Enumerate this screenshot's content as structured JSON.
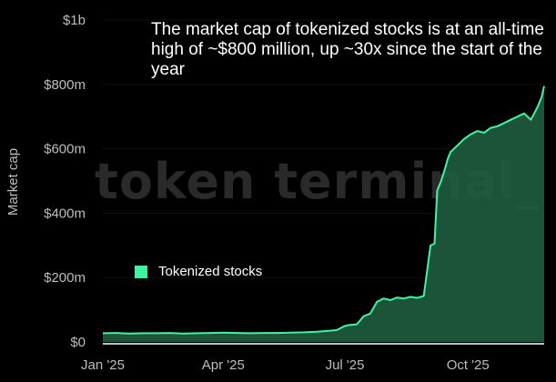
{
  "title": "The market cap of tokenized stocks is at an all-time high of ~$800 million, up ~30x since the start of the year",
  "watermark": "token terminal_",
  "colors": {
    "background": "#000000",
    "series_line": "#3df5a0",
    "series_fill": "#1f5d3f",
    "axis_text": "#bdbdbd",
    "baseline": "#ffffff"
  },
  "chart_data": {
    "type": "area",
    "title": "The market cap of tokenized stocks is at an all-time high of ~$800 million, up ~30x since the start of the year",
    "xlabel": "",
    "ylabel": "Market cap",
    "ylim": [
      0,
      1000
    ],
    "y_unit": "million USD",
    "y_ticks": [
      0,
      200,
      400,
      600,
      800,
      1000
    ],
    "y_tick_labels": [
      "$0",
      "$200m",
      "$400m",
      "$600m",
      "$800m",
      "$1b"
    ],
    "x_ticks": [
      0,
      90,
      181,
      273
    ],
    "x_tick_labels": [
      "Jan '25",
      "Apr '25",
      "Jul '25",
      "Oct '25"
    ],
    "xlim": [
      0,
      330
    ],
    "legend": [
      "Tokenized stocks"
    ],
    "legend_position": "center-left",
    "series": [
      {
        "name": "Tokenized stocks",
        "x": [
          0,
          10,
          20,
          30,
          40,
          50,
          60,
          70,
          80,
          90,
          100,
          110,
          120,
          130,
          140,
          150,
          160,
          170,
          175,
          180,
          183,
          190,
          195,
          200,
          205,
          210,
          215,
          220,
          225,
          230,
          235,
          240,
          245,
          248,
          250,
          253,
          256,
          258,
          260,
          265,
          270,
          275,
          280,
          285,
          290,
          295,
          300,
          305,
          310,
          315,
          320,
          322,
          325,
          328,
          330
        ],
        "values": [
          27,
          28,
          26,
          27,
          27,
          28,
          26,
          27,
          28,
          29,
          28,
          27,
          28,
          28,
          29,
          30,
          32,
          35,
          37,
          48,
          52,
          55,
          80,
          88,
          125,
          135,
          130,
          138,
          135,
          140,
          137,
          143,
          300,
          305,
          470,
          500,
          540,
          570,
          590,
          610,
          630,
          645,
          655,
          650,
          665,
          670,
          680,
          690,
          700,
          710,
          690,
          705,
          730,
          760,
          795
        ]
      }
    ],
    "annotations": []
  }
}
